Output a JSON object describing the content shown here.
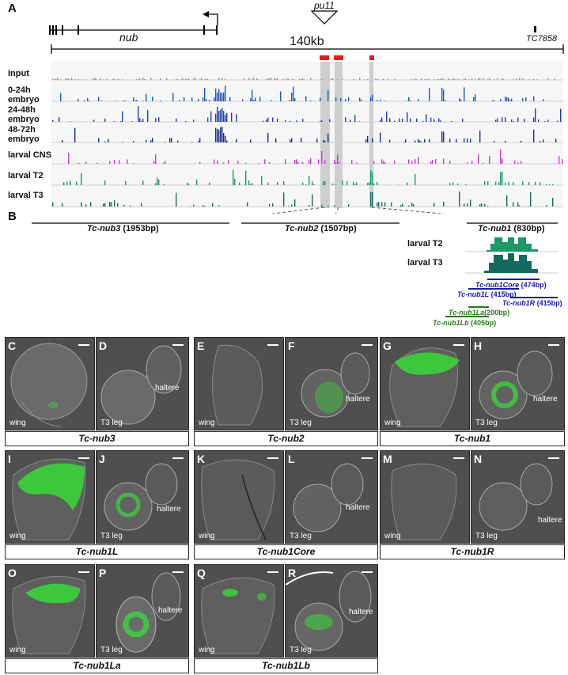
{
  "panel_A": {
    "letter": "A",
    "gene_nub": "nub",
    "insertion": "pu11",
    "gene_tc": "TC7858",
    "scale": "140kb",
    "tracks": [
      "Input",
      "0-24h\nembryo",
      "24-48h\nembryo",
      "48-72h\nembryo",
      "larval CNS",
      "larval T2",
      "larval T3"
    ],
    "track_colors": [
      "#999999",
      "#2255bb",
      "#1f3fa8",
      "#1a2a8a",
      "#c040c8",
      "#1a9a6a",
      "#146a60"
    ]
  },
  "panel_B": {
    "letter": "B",
    "segments": [
      {
        "name": "Tc-nub3",
        "size": " (1953bp)"
      },
      {
        "name": "Tc-nub2",
        "size": " (1507bp)"
      },
      {
        "name": "Tc-nub1",
        "size": " (830bp)"
      }
    ],
    "zoom_tracks": [
      "larval T2",
      "larval T3"
    ],
    "constructs": [
      {
        "name": "Tc-nub1Core",
        "size": " (474bp)",
        "color": "#1a1aa0"
      },
      {
        "name": "Tc-nub1L",
        "size": " (415bp)",
        "color": "#1a1aa0"
      },
      {
        "name": "Tc-nub1R",
        "size": " (415bp)",
        "color": "#1a1aa0"
      },
      {
        "name": "Tc-nub1La",
        "size": "(200bp)",
        "color": "#2a7a1a"
      },
      {
        "name": "Tc-nub1Lb",
        "size": " (405bp)",
        "color": "#2a7a1a"
      }
    ]
  },
  "panels": {
    "C": {
      "letter": "C",
      "caption": "wing"
    },
    "D": {
      "letter": "D",
      "caption": "T3 leg",
      "extra": "haltere"
    },
    "E": {
      "letter": "E",
      "caption": "wing"
    },
    "F": {
      "letter": "F",
      "caption": "T3 leg",
      "extra": "haltere"
    },
    "G": {
      "letter": "G",
      "caption": "wing"
    },
    "H": {
      "letter": "H",
      "caption": "T3 leg",
      "extra": "haltere"
    },
    "I": {
      "letter": "I",
      "caption": "wing"
    },
    "J": {
      "letter": "J",
      "caption": "T3 leg",
      "extra": "haltere"
    },
    "K": {
      "letter": "K",
      "caption": "wing"
    },
    "L": {
      "letter": "L",
      "caption": "T3 leg",
      "extra": "haltere"
    },
    "M": {
      "letter": "M",
      "caption": "wing"
    },
    "N": {
      "letter": "N",
      "caption": "T3 leg",
      "extra": "haltere"
    },
    "O": {
      "letter": "O",
      "caption": "wing"
    },
    "P": {
      "letter": "P",
      "caption": "T3 leg",
      "extra": "haltere"
    },
    "Q": {
      "letter": "Q",
      "caption": "wing"
    },
    "R": {
      "letter": "R",
      "caption": "T3 leg",
      "extra": "haltere"
    }
  },
  "group_labels": [
    "Tc-nub3",
    "Tc-nub2",
    "Tc-nub1",
    "Tc-nub1L",
    "Tc-nub1Core",
    "Tc-nub1R",
    "Tc-nub1La",
    "Tc-nub1Lb"
  ]
}
